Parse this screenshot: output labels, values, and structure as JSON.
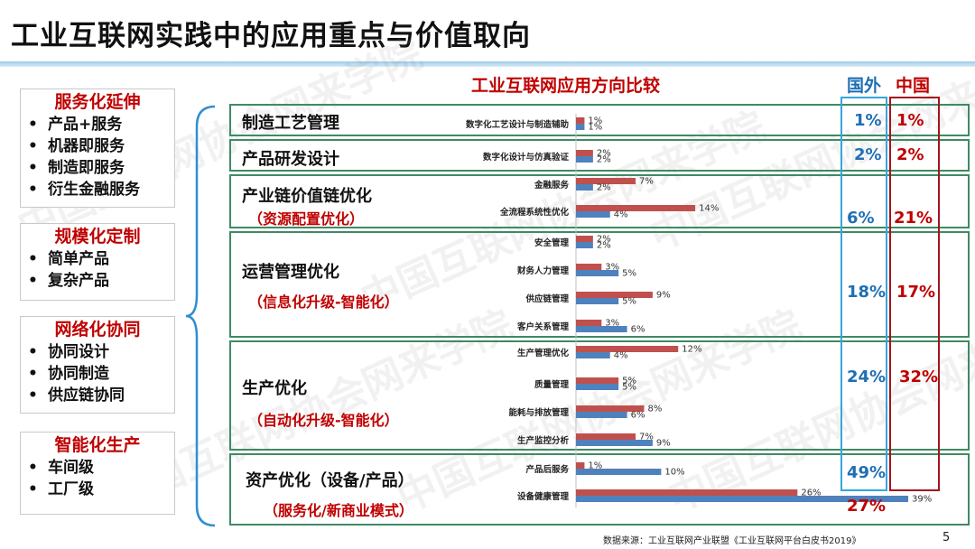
{
  "title": "工业互联网实践中的应用重点与价值取向",
  "watermark": "中国互联网协会网来学院",
  "categories": [
    {
      "title": "服务化延伸",
      "items": [
        "产品+服务",
        "机器即服务",
        "制造即服务",
        "衍生金融服务"
      ]
    },
    {
      "title": "规模化定制",
      "items": [
        "简单产品",
        "复杂产品"
      ]
    },
    {
      "title": "网络化协同",
      "items": [
        "协同设计",
        "协同制造",
        "供应链协同"
      ]
    },
    {
      "title": "智能化生产",
      "items": [
        "车间级",
        "工厂级"
      ]
    }
  ],
  "chart_heading": "工业互联网应用方向比较",
  "col_headers": {
    "foreign": "国外",
    "china": "中国"
  },
  "sections": [
    {
      "title": "制造工艺管理",
      "subtitle": "",
      "foreign": "1%",
      "china": "1%"
    },
    {
      "title": "产品研发设计",
      "subtitle": "",
      "foreign": "2%",
      "china": "2%"
    },
    {
      "title": "产业链价值链优化",
      "subtitle": "（资源配置优化）",
      "foreign": "6%",
      "china": "21%"
    },
    {
      "title": "运营管理优化",
      "subtitle": "（信息化升级-智能化）",
      "foreign": "18%",
      "china": "17%"
    },
    {
      "title": "生产优化",
      "subtitle": "（自动化升级-智能化）",
      "foreign": "24%",
      "china": "32%"
    },
    {
      "title": "资产优化（设备/产品）",
      "subtitle": "（服务化/新商业模式）",
      "foreign": "49%",
      "china": "27%"
    }
  ],
  "chart_data": {
    "type": "bar",
    "orientation": "horizontal",
    "categories": [
      "数字化工艺设计与制造辅助",
      "数字化设计与仿真验证",
      "金融服务",
      "全流程系统性优化",
      "安全管理",
      "财务人力管理",
      "供应链管理",
      "客户关系管理",
      "生产管理优化",
      "质量管理",
      "能耗与排放管理",
      "生产监控分析",
      "产品后服务",
      "设备健康管理"
    ],
    "series": [
      {
        "name": "中国",
        "color": "#c0504d",
        "values": [
          1,
          2,
          7,
          14,
          2,
          3,
          9,
          3,
          12,
          5,
          8,
          7,
          1,
          26
        ]
      },
      {
        "name": "国外",
        "color": "#4f81bd",
        "values": [
          1,
          2,
          2,
          4,
          2,
          5,
          5,
          6,
          4,
          5,
          6,
          9,
          10,
          39
        ]
      }
    ],
    "xlim": [
      0,
      39
    ]
  },
  "source": "数据来源：工业互联网产业联盟《工业互联网平台白皮书2019》",
  "page_number": "5"
}
